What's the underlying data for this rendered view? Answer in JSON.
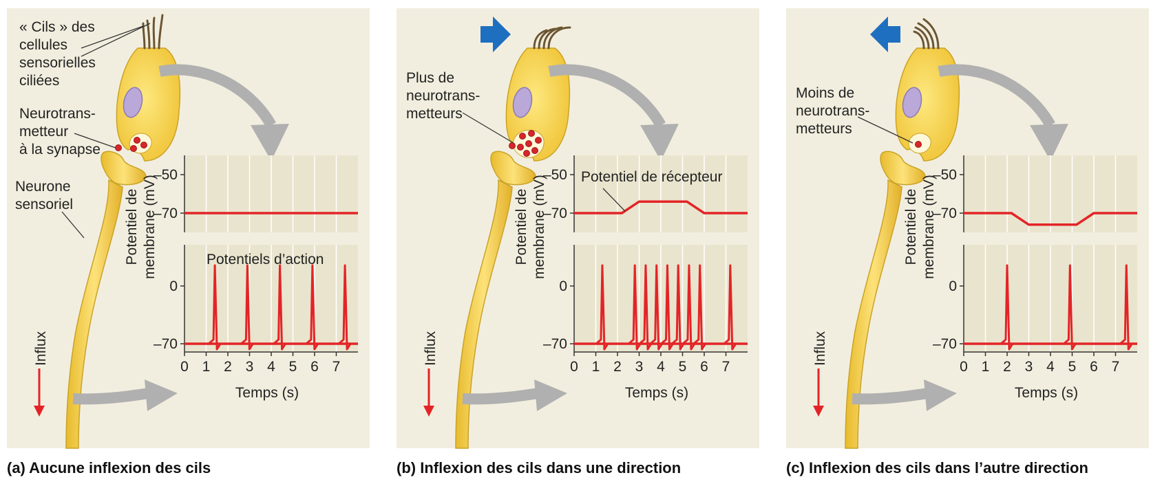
{
  "panels": [
    {
      "caption": "(a) Aucune inflexion des cils",
      "hair_label": [
        "« Cils » des",
        "cellules",
        "sensorielles",
        "ciliées"
      ],
      "nt_label": [
        "Neurotrans-",
        "metteur",
        "à la synapse"
      ],
      "neuron_label": [
        "Neurone",
        "sensoriel"
      ],
      "influx_label": "Influx",
      "receptor_title": "",
      "spikes_title": "Potentiels d’action",
      "hair_direction": "none",
      "vesicle_count": 3
    },
    {
      "caption": "(b) Inflexion des cils dans une direction",
      "nt_label": [
        "Plus de",
        "neurotrans-",
        "metteurs"
      ],
      "influx_label": "Influx",
      "receptor_title": "Potentiel de récepteur",
      "spikes_title": "",
      "hair_direction": "right",
      "vesicle_count": 7
    },
    {
      "caption": "(c) Inflexion des cils dans l’autre direction",
      "nt_label": [
        "Moins de",
        "neurotrans-",
        "metteurs"
      ],
      "influx_label": "Influx",
      "receptor_title": "",
      "spikes_title": "",
      "hair_direction": "left",
      "vesicle_count": 1
    }
  ],
  "axes": {
    "ylabel_line1": "Potentiel de",
    "ylabel_line2": "membrane (mV)",
    "xlabel": "Temps (s)",
    "receptor_ticks": [
      "–50",
      "–70"
    ],
    "spike_ticks": [
      "0",
      "–70"
    ],
    "x_ticks": [
      "0",
      "1",
      "2",
      "3",
      "4",
      "5",
      "6",
      "7"
    ]
  },
  "chart_data": [
    {
      "type": "line",
      "panel": "a",
      "receptor_potential_mV": {
        "x": [
          0,
          8
        ],
        "y": [
          -70,
          -70
        ]
      },
      "action_potential_times_s": [
        1.4,
        2.9,
        4.4,
        5.9,
        7.4
      ],
      "resting_mV": -70,
      "peak_mV": 25,
      "xlim": [
        0,
        8
      ],
      "receptor_ylim": [
        -80,
        -40
      ],
      "spike_ylim": [
        -80,
        50
      ]
    },
    {
      "type": "line",
      "panel": "b",
      "receptor_potential_mV": {
        "x": [
          0,
          2.2,
          3.0,
          5.2,
          6.0,
          8
        ],
        "y": [
          -70,
          -70,
          -64,
          -64,
          -70,
          -70
        ]
      },
      "action_potential_times_s": [
        1.3,
        2.8,
        3.3,
        3.8,
        4.3,
        4.8,
        5.3,
        5.8,
        7.2
      ],
      "resting_mV": -70,
      "peak_mV": 25,
      "xlim": [
        0,
        8
      ],
      "receptor_ylim": [
        -80,
        -40
      ],
      "spike_ylim": [
        -80,
        50
      ]
    },
    {
      "type": "line",
      "panel": "c",
      "receptor_potential_mV": {
        "x": [
          0,
          2.2,
          3.0,
          5.2,
          6.0,
          8
        ],
        "y": [
          -70,
          -70,
          -76,
          -76,
          -70,
          -70
        ]
      },
      "action_potential_times_s": [
        2.0,
        4.9,
        7.5
      ],
      "resting_mV": -70,
      "peak_mV": 25,
      "xlim": [
        0,
        8
      ],
      "receptor_ylim": [
        -80,
        -40
      ],
      "spike_ylim": [
        -80,
        50
      ]
    }
  ],
  "colors": {
    "panel_bg": "#f2eedf",
    "plot_bg": "#e9e4cd",
    "cell_fill": "#f8d64e",
    "cell_stroke": "#c9a227",
    "nucleus": "#b9a8d8",
    "vesicle": "#d7262b",
    "trace": "#e32427",
    "gray_arrow": "#b0b0b0",
    "blue_arrow": "#1f6fc0",
    "influx_arrow": "#e32427"
  }
}
